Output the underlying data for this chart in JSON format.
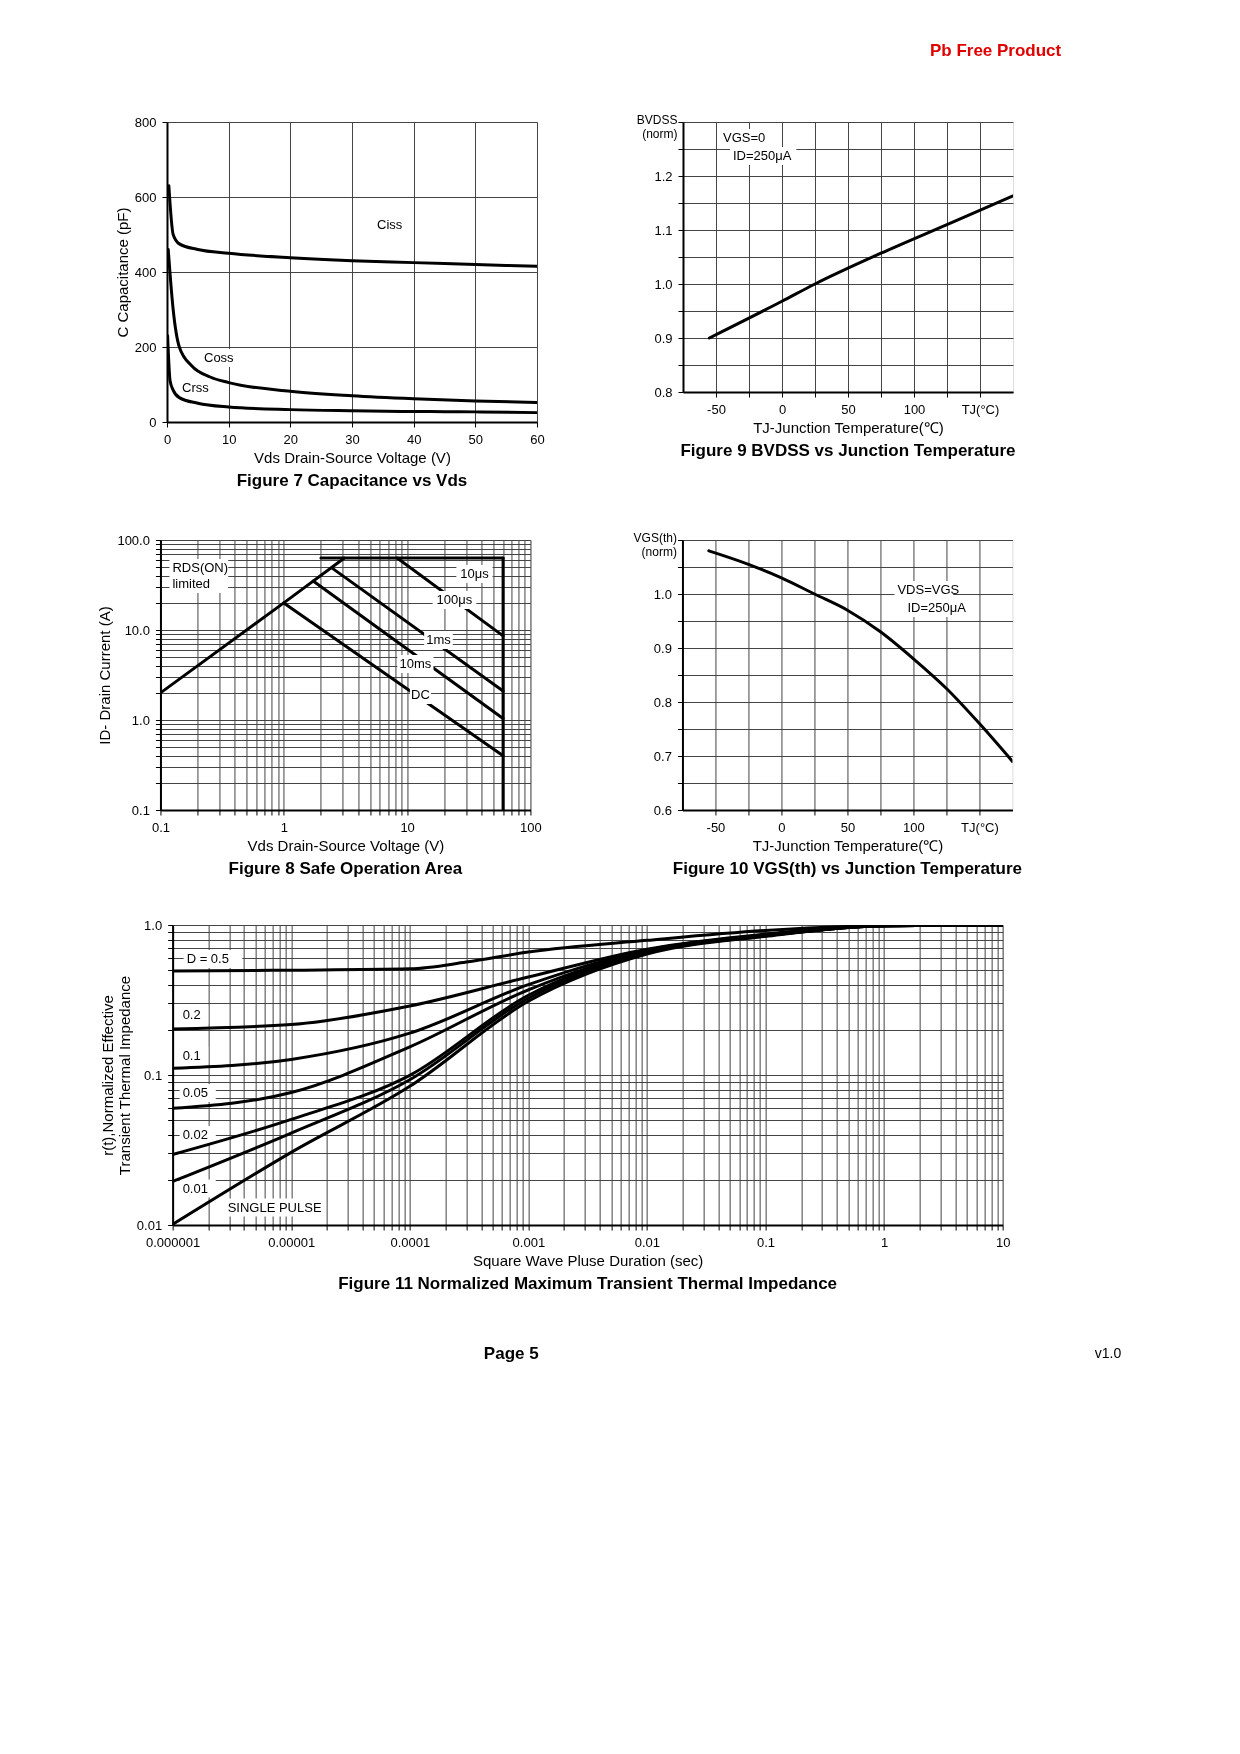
{
  "chart_data": [
    {
      "type": "other",
      "annotations": [
        "Pb Free Product"
      ]
    },
    {
      "type": "line",
      "title": "Figure 7 Capacitance vs Vds",
      "xlabel": "Vds Drain-Source Voltage (V)",
      "ylabel": "C Capacitance (pF)",
      "xlim": [
        0,
        60
      ],
      "ylim": [
        0,
        800
      ],
      "xticks": [
        0,
        10,
        20,
        30,
        40,
        50,
        60
      ],
      "yticks": [
        0,
        200,
        400,
        600,
        800
      ],
      "grid": true,
      "series": [
        {
          "name": "Ciss",
          "color": "#000000",
          "x": [
            0.3,
            1,
            2,
            5,
            10,
            20,
            30,
            40,
            50,
            60
          ],
          "values": [
            630,
            500,
            475,
            460,
            450,
            438,
            430,
            425,
            420,
            415
          ]
        },
        {
          "name": "Coss",
          "color": "#000000",
          "x": [
            0.2,
            1,
            2,
            4,
            7,
            10,
            20,
            30,
            40,
            50,
            60
          ],
          "values": [
            460,
            300,
            200,
            150,
            120,
            105,
            82,
            70,
            62,
            56,
            52
          ]
        },
        {
          "name": "Crss",
          "color": "#000000",
          "x": [
            0.1,
            0.5,
            1,
            2,
            5,
            10,
            20,
            30,
            40,
            50,
            60
          ],
          "values": [
            230,
            110,
            85,
            65,
            50,
            40,
            33,
            30,
            28,
            27,
            25
          ]
        }
      ]
    },
    {
      "type": "line",
      "title": "Figure 9 BVDSS vs Junction Temperature",
      "xlabel": "TJ-Junction Temperature(℃)",
      "ylabel": "BVDSS\n(norm)",
      "xlim": [
        -75,
        175
      ],
      "ylim": [
        0.8,
        1.3
      ],
      "xticks": [
        -50,
        {
          "value": -25,
          "label": null
        },
        0,
        {
          "value": 25,
          "label": null
        },
        50,
        {
          "value": 75,
          "label": null
        },
        100,
        {
          "value": 125,
          "label": null
        },
        {
          "value": 150,
          "label": "TJ(°C)"
        }
      ],
      "yticks": [
        0.8,
        {
          "value": 0.85,
          "label": null
        },
        0.9,
        {
          "value": 0.95,
          "label": null
        },
        {
          "value": 1.0,
          "label": "1.0"
        },
        {
          "value": 1.05,
          "label": null
        },
        1.1,
        {
          "value": 1.15,
          "label": null
        },
        1.2,
        {
          "value": 1.25,
          "label": null
        },
        {
          "value": 1.3,
          "label": null
        }
      ],
      "grid": true,
      "annotations": [
        "VGS=0",
        "ID=250μA"
      ],
      "series": [
        {
          "color": "#000000",
          "x": [
            -55,
            0,
            25,
            75,
            125,
            175
          ],
          "values": [
            0.9,
            0.968,
            1.0,
            1.057,
            1.11,
            1.163
          ]
        }
      ]
    },
    {
      "type": "line",
      "title": "Figure 8 Safe Operation Area",
      "xlabel": "Vds Drain-Source Voltage (V)",
      "ylabel": "ID- Drain Current (A)",
      "log": "xy",
      "xlim": [
        0.1,
        100
      ],
      "ylim": [
        0.1,
        100
      ],
      "grid": true,
      "xticks": [
        0.1,
        {
          "value": 0.2,
          "label": null
        },
        {
          "value": 0.3,
          "label": null
        },
        {
          "value": 0.4,
          "label": null
        },
        {
          "value": 0.5,
          "label": null
        },
        {
          "value": 0.6,
          "label": null
        },
        {
          "value": 0.7,
          "label": null
        },
        {
          "value": 0.8,
          "label": null
        },
        {
          "value": 0.9,
          "label": null
        },
        1,
        {
          "value": 2,
          "label": null
        },
        {
          "value": 3,
          "label": null
        },
        {
          "value": 4,
          "label": null
        },
        {
          "value": 5,
          "label": null
        },
        {
          "value": 6,
          "label": null
        },
        {
          "value": 7,
          "label": null
        },
        {
          "value": 8,
          "label": null
        },
        {
          "value": 9,
          "label": null
        },
        10,
        {
          "value": 20,
          "label": null
        },
        {
          "value": 30,
          "label": null
        },
        {
          "value": 40,
          "label": null
        },
        {
          "value": 50,
          "label": null
        },
        {
          "value": 60,
          "label": null
        },
        {
          "value": 70,
          "label": null
        },
        {
          "value": 80,
          "label": null
        },
        {
          "value": 90,
          "label": null
        },
        100
      ],
      "yticks": [
        {
          "value": 0.1,
          "label": "0.1"
        },
        {
          "value": 0.2,
          "label": null
        },
        {
          "value": 0.3,
          "label": null
        },
        {
          "value": 0.4,
          "label": null
        },
        {
          "value": 0.5,
          "label": null
        },
        {
          "value": 0.6,
          "label": null
        },
        {
          "value": 0.7,
          "label": null
        },
        {
          "value": 0.8,
          "label": null
        },
        {
          "value": 0.9,
          "label": null
        },
        {
          "value": 1,
          "label": "1.0"
        },
        {
          "value": 2,
          "label": null
        },
        {
          "value": 3,
          "label": null
        },
        {
          "value": 4,
          "label": null
        },
        {
          "value": 5,
          "label": null
        },
        {
          "value": 6,
          "label": null
        },
        {
          "value": 7,
          "label": null
        },
        {
          "value": 8,
          "label": null
        },
        {
          "value": 9,
          "label": null
        },
        {
          "value": 10,
          "label": "10.0"
        },
        {
          "value": 20,
          "label": null
        },
        {
          "value": 30,
          "label": null
        },
        {
          "value": 40,
          "label": null
        },
        {
          "value": 50,
          "label": null
        },
        {
          "value": 60,
          "label": null
        },
        {
          "value": 70,
          "label": null
        },
        {
          "value": 80,
          "label": null
        },
        {
          "value": 90,
          "label": null
        },
        {
          "value": 100,
          "label": "100.0"
        }
      ],
      "annotations": [
        "RDS(ON)\nlimited",
        "10μs",
        "100μs",
        "1ms",
        "10ms",
        "DC"
      ],
      "series": [
        {
          "color": "#000000",
          "x": [
            0.1,
            1,
            3.1
          ],
          "values": [
            2,
            20,
            63
          ]
        },
        {
          "color": "#000000",
          "x": [
            2,
            60
          ],
          "values": [
            63,
            63
          ]
        },
        {
          "color": "#000000",
          "x": [
            60,
            60
          ],
          "values": [
            63,
            0.1
          ]
        },
        {
          "color": "#000000",
          "x": [
            8.3,
            60
          ],
          "values": [
            63,
            8.6
          ]
        },
        {
          "color": "#000000",
          "x": [
            2.45,
            60
          ],
          "values": [
            49,
            2.1
          ]
        },
        {
          "color": "#000000",
          "x": [
            1.73,
            60
          ],
          "values": [
            35,
            1.04
          ]
        },
        {
          "color": "#000000",
          "x": [
            1,
            60
          ],
          "values": [
            20,
            0.4
          ]
        }
      ]
    },
    {
      "type": "line",
      "title": "Figure 10 VGS(th) vs Junction Temperature",
      "xlabel": "TJ-Junction Temperature(℃)",
      "ylabel": "VGS(th)\n(norm)",
      "xlim": [
        -75,
        175
      ],
      "ylim": [
        0.6,
        1.1
      ],
      "xticks": [
        -50,
        {
          "value": -25,
          "label": null
        },
        0,
        {
          "value": 25,
          "label": null
        },
        50,
        {
          "value": 75,
          "label": null
        },
        100,
        {
          "value": 125,
          "label": null
        },
        {
          "value": 150,
          "label": "TJ(°C)"
        }
      ],
      "yticks": [
        0.6,
        {
          "value": 0.65,
          "label": null
        },
        0.7,
        {
          "value": 0.75,
          "label": null
        },
        0.8,
        {
          "value": 0.85,
          "label": null
        },
        0.9,
        {
          "value": 0.95,
          "label": null
        },
        {
          "value": 1.0,
          "label": "1.0"
        },
        {
          "value": 1.05,
          "label": null
        },
        {
          "value": 1.1,
          "label": null
        }
      ],
      "grid": true,
      "annotations": [
        "VDS=VGS",
        "ID=250μA"
      ],
      "series": [
        {
          "color": "#000000",
          "x": [
            -55,
            -25,
            0,
            25,
            50,
            75,
            100,
            125,
            150,
            175
          ],
          "values": [
            1.08,
            1.055,
            1.03,
            1.0,
            0.97,
            0.93,
            0.88,
            0.825,
            0.76,
            0.69
          ]
        }
      ]
    },
    {
      "type": "line",
      "title": "Figure 11 Normalized Maximum Transient Thermal Impedance",
      "xlabel": "Square Wave Pluse Duration (sec)",
      "ylabel": "r(t),Normalized Effective\nTransient Thermal Impedance",
      "log": "xy",
      "xlim": [
        1e-06,
        10
      ],
      "ylim": [
        0.01,
        1
      ],
      "grid": true,
      "xticks": [
        {
          "value": 1e-06,
          "label": "0.000001"
        },
        {
          "value": 2e-06,
          "label": null
        },
        {
          "value": 3e-06,
          "label": null
        },
        {
          "value": 4e-06,
          "label": null
        },
        {
          "value": 5e-06,
          "label": null
        },
        {
          "value": 6e-06,
          "label": null
        },
        {
          "value": 7e-06,
          "label": null
        },
        {
          "value": 8e-06,
          "label": null
        },
        {
          "value": 9e-06,
          "label": null
        },
        {
          "value": 1e-05,
          "label": "0.00001"
        },
        {
          "value": 2e-05,
          "label": null
        },
        {
          "value": 3e-05,
          "label": null
        },
        {
          "value": 4e-05,
          "label": null
        },
        {
          "value": 5e-05,
          "label": null
        },
        {
          "value": 6e-05,
          "label": null
        },
        {
          "value": 7e-05,
          "label": null
        },
        {
          "value": 8e-05,
          "label": null
        },
        {
          "value": 9e-05,
          "label": null
        },
        {
          "value": 0.0001,
          "label": "0.0001"
        },
        {
          "value": 0.0002,
          "label": null
        },
        {
          "value": 0.0003,
          "label": null
        },
        {
          "value": 0.0004,
          "label": null
        },
        {
          "value": 0.0005,
          "label": null
        },
        {
          "value": 0.0006,
          "label": null
        },
        {
          "value": 0.0007,
          "label": null
        },
        {
          "value": 0.0008,
          "label": null
        },
        {
          "value": 0.0009,
          "label": null
        },
        {
          "value": 0.001,
          "label": "0.001"
        },
        {
          "value": 0.002,
          "label": null
        },
        {
          "value": 0.003,
          "label": null
        },
        {
          "value": 0.004,
          "label": null
        },
        {
          "value": 0.005,
          "label": null
        },
        {
          "value": 0.006,
          "label": null
        },
        {
          "value": 0.007,
          "label": null
        },
        {
          "value": 0.008,
          "label": null
        },
        {
          "value": 0.009,
          "label": null
        },
        {
          "value": 0.01,
          "label": "0.01"
        },
        {
          "value": 0.02,
          "label": null
        },
        {
          "value": 0.03,
          "label": null
        },
        {
          "value": 0.04,
          "label": null
        },
        {
          "value": 0.05,
          "label": null
        },
        {
          "value": 0.06,
          "label": null
        },
        {
          "value": 0.07,
          "label": null
        },
        {
          "value": 0.08,
          "label": null
        },
        {
          "value": 0.09,
          "label": null
        },
        {
          "value": 0.1,
          "label": "0.1"
        },
        {
          "value": 0.2,
          "label": null
        },
        {
          "value": 0.3,
          "label": null
        },
        {
          "value": 0.4,
          "label": null
        },
        {
          "value": 0.5,
          "label": null
        },
        {
          "value": 0.6,
          "label": null
        },
        {
          "value": 0.7,
          "label": null
        },
        {
          "value": 0.8,
          "label": null
        },
        {
          "value": 0.9,
          "label": null
        },
        {
          "value": 1,
          "label": "1"
        },
        {
          "value": 2,
          "label": null
        },
        {
          "value": 3,
          "label": null
        },
        {
          "value": 4,
          "label": null
        },
        {
          "value": 5,
          "label": null
        },
        {
          "value": 6,
          "label": null
        },
        {
          "value": 7,
          "label": null
        },
        {
          "value": 8,
          "label": null
        },
        {
          "value": 9,
          "label": null
        },
        {
          "value": 10,
          "label": "10"
        }
      ],
      "yticks": [
        {
          "value": 0.01,
          "label": "0.01"
        },
        {
          "value": 0.02,
          "label": null
        },
        {
          "value": 0.03,
          "label": null
        },
        {
          "value": 0.04,
          "label": null
        },
        {
          "value": 0.05,
          "label": null
        },
        {
          "value": 0.06,
          "label": null
        },
        {
          "value": 0.07,
          "label": null
        },
        {
          "value": 0.08,
          "label": null
        },
        {
          "value": 0.09,
          "label": null
        },
        {
          "value": 0.1,
          "label": "0.1"
        },
        {
          "value": 0.2,
          "label": null
        },
        {
          "value": 0.3,
          "label": null
        },
        {
          "value": 0.4,
          "label": null
        },
        {
          "value": 0.5,
          "label": null
        },
        {
          "value": 0.6,
          "label": null
        },
        {
          "value": 0.7,
          "label": null
        },
        {
          "value": 0.8,
          "label": null
        },
        {
          "value": 0.9,
          "label": null
        },
        {
          "value": 1,
          "label": "1.0"
        }
      ],
      "series": [
        {
          "name": "D = 0.5",
          "color": "#000000",
          "x": [
            1e-06,
            1e-05,
            0.0001,
            0.0003,
            0.001,
            0.01,
            0.1,
            1,
            10
          ],
          "values": [
            0.494,
            0.5,
            0.51,
            0.566,
            0.66,
            0.79,
            0.92,
            0.99,
            1.0
          ]
        },
        {
          "name": "0.2",
          "color": "#000000",
          "x": [
            1e-06,
            1e-05,
            0.0001,
            0.001,
            0.01,
            0.1,
            1,
            10
          ],
          "values": [
            0.203,
            0.217,
            0.288,
            0.45,
            0.69,
            0.87,
            0.99,
            1.0
          ]
        },
        {
          "name": "0.1",
          "color": "#000000",
          "x": [
            1e-06,
            1e-05,
            0.0001,
            0.001,
            0.01,
            0.1,
            1,
            10
          ],
          "values": [
            0.111,
            0.127,
            0.19,
            0.4,
            0.68,
            0.86,
            0.99,
            1.0
          ]
        },
        {
          "name": "0.05",
          "color": "#000000",
          "x": [
            1e-06,
            1e-05,
            0.0001,
            0.001,
            0.01,
            0.1,
            1,
            10
          ],
          "values": [
            0.06,
            0.0764,
            0.154,
            0.37,
            0.67,
            0.85,
            0.99,
            1.0
          ]
        },
        {
          "name": "0.02",
          "color": "#000000",
          "x": [
            1e-06,
            1e-05,
            0.0001,
            0.001,
            0.01,
            0.1,
            1,
            10
          ],
          "values": [
            0.0295,
            0.0506,
            0.0995,
            0.34,
            0.66,
            0.85,
            0.99,
            1.0
          ]
        },
        {
          "name": "0.01",
          "color": "#000000",
          "x": [
            1e-06,
            1e-05,
            0.0001,
            0.001,
            0.01,
            0.1,
            1,
            10
          ],
          "values": [
            0.0195,
            0.041,
            0.093,
            0.325,
            0.65,
            0.845,
            0.99,
            1.0
          ]
        },
        {
          "name": "SINGLE PULSE",
          "color": "#000000",
          "x": [
            1e-06,
            1e-05,
            0.0001,
            0.001,
            0.01,
            0.1,
            1,
            10
          ],
          "values": [
            0.0101,
            0.0305,
            0.084,
            0.31,
            0.64,
            0.84,
            0.99,
            1.0
          ]
        }
      ]
    },
    {
      "type": "other",
      "annotations": [
        "Page 5",
        "v1.0"
      ]
    }
  ]
}
